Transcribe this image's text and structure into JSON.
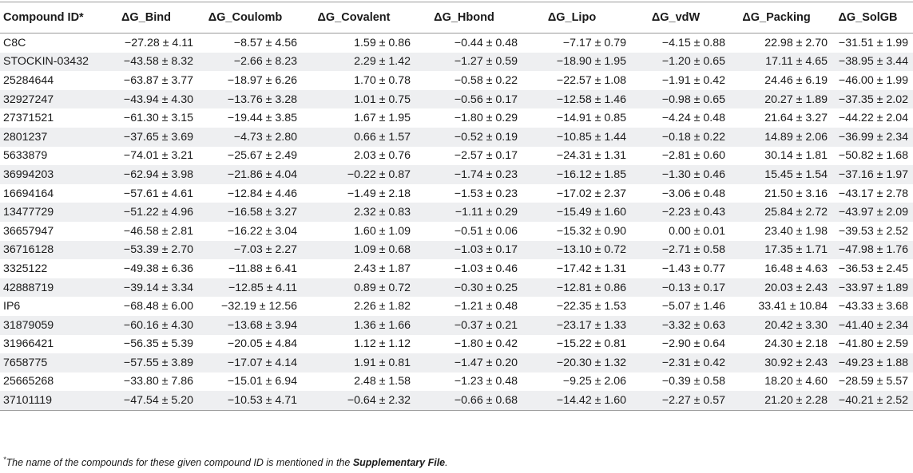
{
  "table": {
    "headers": [
      "Compound ID*",
      "ΔG_Bind",
      "ΔG_Coulomb",
      "ΔG_Covalent",
      "ΔG_Hbond",
      "ΔG_Lipo",
      "ΔG_vdW",
      "ΔG_Packing",
      "ΔG_SolGB"
    ],
    "rows": [
      [
        "C8C",
        "−27.28 ± 4.11",
        "−8.57 ± 4.56",
        "1.59 ± 0.86",
        "−0.44 ± 0.48",
        "−7.17 ± 0.79",
        "−4.15 ± 0.88",
        "22.98 ± 2.70",
        "−31.51 ± 1.99"
      ],
      [
        "STOCKIN-03432",
        "−43.58 ± 8.32",
        "−2.66 ± 8.23",
        "2.29 ± 1.42",
        "−1.27 ± 0.59",
        "−18.90 ± 1.95",
        "−1.20 ± 0.65",
        "17.11 ± 4.65",
        "−38.95 ± 3.44"
      ],
      [
        "25284644",
        "−63.87 ± 3.77",
        "−18.97 ± 6.26",
        "1.70 ± 0.78",
        "−0.58 ± 0.22",
        "−22.57 ± 1.08",
        "−1.91 ± 0.42",
        "24.46 ± 6.19",
        "−46.00 ± 1.99"
      ],
      [
        "32927247",
        "−43.94 ± 4.30",
        "−13.76 ± 3.28",
        "1.01 ± 0.75",
        "−0.56 ± 0.17",
        "−12.58 ± 1.46",
        "−0.98 ± 0.65",
        "20.27 ± 1.89",
        "−37.35 ± 2.02"
      ],
      [
        "27371521",
        "−61.30 ± 3.15",
        "−19.44 ± 3.85",
        "1.67 ± 1.95",
        "−1.80 ± 0.29",
        "−14.91 ± 0.85",
        "−4.24 ± 0.48",
        "21.64 ± 3.27",
        "−44.22 ± 2.04"
      ],
      [
        "2801237",
        "−37.65 ± 3.69",
        "−4.73 ± 2.80",
        "0.66 ± 1.57",
        "−0.52 ± 0.19",
        "−10.85 ± 1.44",
        "−0.18 ± 0.22",
        "14.89 ± 2.06",
        "−36.99 ± 2.34"
      ],
      [
        "5633879",
        "−74.01 ± 3.21",
        "−25.67 ± 2.49",
        "2.03 ± 0.76",
        "−2.57 ± 0.17",
        "−24.31 ± 1.31",
        "−2.81 ± 0.60",
        "30.14 ± 1.81",
        "−50.82 ± 1.68"
      ],
      [
        "36994203",
        "−62.94 ± 3.98",
        "−21.86 ± 4.04",
        "−0.22 ± 0.87",
        "−1.74 ± 0.23",
        "−16.12 ± 1.85",
        "−1.30 ± 0.46",
        "15.45 ± 1.54",
        "−37.16 ± 1.97"
      ],
      [
        "16694164",
        "−57.61 ± 4.61",
        "−12.84 ± 4.46",
        "−1.49 ± 2.18",
        "−1.53 ± 0.23",
        "−17.02 ± 2.37",
        "−3.06 ± 0.48",
        "21.50 ± 3.16",
        "−43.17 ± 2.78"
      ],
      [
        "13477729",
        "−51.22 ± 4.96",
        "−16.58 ± 3.27",
        "2.32 ± 0.83",
        "−1.11 ± 0.29",
        "−15.49 ± 1.60",
        "−2.23 ± 0.43",
        "25.84 ± 2.72",
        "−43.97 ± 2.09"
      ],
      [
        "36657947",
        "−46.58 ± 2.81",
        "−16.22 ± 3.04",
        "1.60 ± 1.09",
        "−0.51 ± 0.06",
        "−15.32 ± 0.90",
        "0.00 ± 0.01",
        "23.40 ± 1.98",
        "−39.53 ± 2.52"
      ],
      [
        "36716128",
        "−53.39 ± 2.70",
        "−7.03 ± 2.27",
        "1.09 ± 0.68",
        "−1.03 ± 0.17",
        "−13.10 ± 0.72",
        "−2.71 ± 0.58",
        "17.35 ± 1.71",
        "−47.98 ± 1.76"
      ],
      [
        "3325122",
        "−49.38 ± 6.36",
        "−11.88 ± 6.41",
        "2.43 ± 1.87",
        "−1.03 ± 0.46",
        "−17.42 ± 1.31",
        "−1.43 ± 0.77",
        "16.48 ± 4.63",
        "−36.53 ± 2.45"
      ],
      [
        "42888719",
        "−39.14 ± 3.34",
        "−12.85 ± 4.11",
        "0.89 ± 0.72",
        "−0.30 ± 0.25",
        "−12.81 ± 0.86",
        "−0.13 ± 0.17",
        "20.03 ± 2.43",
        "−33.97 ± 1.89"
      ],
      [
        "IP6",
        "−68.48 ± 6.00",
        "−32.19 ± 12.56",
        "2.26 ± 1.82",
        "−1.21 ± 0.48",
        "−22.35 ± 1.53",
        "−5.07 ± 1.46",
        "33.41 ± 10.84",
        "−43.33 ± 3.68"
      ],
      [
        "31879059",
        "−60.16 ± 4.30",
        "−13.68 ± 3.94",
        "1.36 ± 1.66",
        "−0.37 ± 0.21",
        "−23.17 ± 1.33",
        "−3.32 ± 0.63",
        "20.42 ± 3.30",
        "−41.40 ± 2.34"
      ],
      [
        "31966421",
        "−56.35 ± 5.39",
        "−20.05 ± 4.84",
        "1.12 ± 1.12",
        "−1.80 ± 0.42",
        "−15.22 ± 0.81",
        "−2.90 ± 0.64",
        "24.30 ± 2.18",
        "−41.80 ± 2.59"
      ],
      [
        "7658775",
        "−57.55 ± 3.89",
        "−17.07 ± 4.14",
        "1.91 ± 0.81",
        "−1.47 ± 0.20",
        "−20.30 ± 1.32",
        "−2.31 ± 0.42",
        "30.92 ± 2.43",
        "−49.23 ± 1.88"
      ],
      [
        "25665268",
        "−33.80 ± 7.86",
        "−15.01 ± 6.94",
        "2.48 ± 1.58",
        "−1.23 ± 0.48",
        "−9.25 ± 2.06",
        "−0.39 ± 0.58",
        "18.20 ± 4.60",
        "−28.59 ± 5.57"
      ],
      [
        "37101119",
        "−47.54 ± 5.20",
        "−10.53 ± 4.71",
        "−0.64 ± 2.32",
        "−0.66 ± 0.68",
        "−14.42 ± 1.60",
        "−2.27 ± 0.57",
        "21.20 ± 2.28",
        "−40.21 ± 2.52"
      ]
    ]
  },
  "footnote": {
    "marker": "*",
    "text": "The name of the compounds for these given compound ID is mentioned in the ",
    "emphasis": "Supplementary File",
    "end": "."
  }
}
